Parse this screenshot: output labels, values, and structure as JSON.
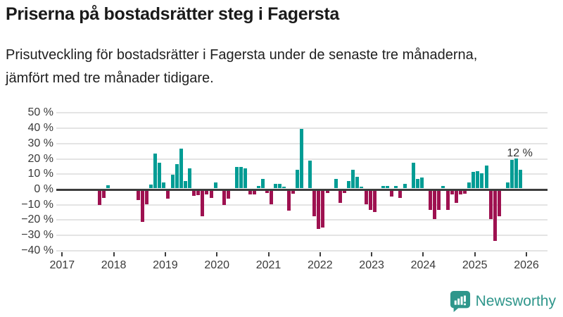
{
  "header": {
    "title": "Priserna på bostadsrätter steg i Fagersta",
    "subtitle": "Prisutveckling för bostadsrätter i Fagersta under de senaste tre månaderna, jämfört med tre månader tidigare."
  },
  "chart_data": {
    "type": "bar",
    "title": "Priserna på bostadsrätter steg i Fagersta",
    "xlabel": "",
    "ylabel": "",
    "unit": "%",
    "ylim": [
      -40,
      50
    ],
    "grid": "horizontal",
    "y_tick_values": [
      50,
      40,
      30,
      20,
      10,
      0,
      -10,
      -20,
      -30,
      -40
    ],
    "y_tick_labels": [
      "50 %",
      "40 %",
      "30 %",
      "20 %",
      "10 %",
      "0 %",
      "−10 %",
      "−20 %",
      "−30 %",
      "−40 %"
    ],
    "x_tick_labels": [
      "2017",
      "2018",
      "2019",
      "2020",
      "2021",
      "2022",
      "2023",
      "2024",
      "2025",
      "2026"
    ],
    "x_unit": "months_after_january_2017",
    "bars": [
      [
        9,
        -9.5
      ],
      [
        10,
        -5
      ],
      [
        11,
        2
      ],
      [
        18,
        -6
      ],
      [
        19,
        -20.5
      ],
      [
        20,
        -9
      ],
      [
        21,
        2.5
      ],
      [
        22,
        23
      ],
      [
        23,
        17
      ],
      [
        24,
        4
      ],
      [
        25,
        -5.5
      ],
      [
        26,
        9
      ],
      [
        27,
        16
      ],
      [
        28,
        26
      ],
      [
        29,
        5
      ],
      [
        30,
        13
      ],
      [
        31,
        -3.5
      ],
      [
        32,
        -3
      ],
      [
        33,
        -17
      ],
      [
        34,
        -2.5
      ],
      [
        35,
        -5
      ],
      [
        36,
        4
      ],
      [
        38,
        -9.5
      ],
      [
        39,
        -5.5
      ],
      [
        41,
        14
      ],
      [
        42,
        14
      ],
      [
        43,
        13
      ],
      [
        44,
        -2.5
      ],
      [
        45,
        -2.5
      ],
      [
        46,
        1.5
      ],
      [
        47,
        6
      ],
      [
        48,
        -1.5
      ],
      [
        49,
        -9
      ],
      [
        50,
        3
      ],
      [
        51,
        3
      ],
      [
        52,
        1
      ],
      [
        53,
        -13
      ],
      [
        54,
        -2
      ],
      [
        55,
        12
      ],
      [
        56,
        39
      ],
      [
        58,
        18
      ],
      [
        59,
        -17
      ],
      [
        60,
        -25
      ],
      [
        61,
        -24
      ],
      [
        62,
        -1.5
      ],
      [
        64,
        6
      ],
      [
        65,
        -8
      ],
      [
        66,
        -1.5
      ],
      [
        67,
        5
      ],
      [
        68,
        12
      ],
      [
        69,
        7.5
      ],
      [
        70,
        1
      ],
      [
        71,
        -9
      ],
      [
        72,
        -12.5
      ],
      [
        73,
        -14
      ],
      [
        75,
        1.5
      ],
      [
        76,
        1.5
      ],
      [
        77,
        -4
      ],
      [
        78,
        1.5
      ],
      [
        79,
        -5
      ],
      [
        80,
        3
      ],
      [
        82,
        17
      ],
      [
        83,
        6
      ],
      [
        84,
        7
      ],
      [
        86,
        -12.5
      ],
      [
        87,
        -18.5
      ],
      [
        88,
        -12.5
      ],
      [
        89,
        1.5
      ],
      [
        90,
        -12.5
      ],
      [
        91,
        -2.5
      ],
      [
        92,
        -8
      ],
      [
        93,
        -2.5
      ],
      [
        94,
        -2
      ],
      [
        95,
        4
      ],
      [
        96,
        11
      ],
      [
        97,
        11.5
      ],
      [
        98,
        10
      ],
      [
        99,
        15
      ],
      [
        100,
        -18.5
      ],
      [
        101,
        -33
      ],
      [
        102,
        -17
      ],
      [
        104,
        4
      ],
      [
        105,
        18.5
      ],
      [
        106,
        19.5
      ],
      [
        107,
        12
      ]
    ],
    "annotation": {
      "text": "12 %",
      "value": 12,
      "anchor_month": 107
    },
    "colors": {
      "positive": "#009c94",
      "negative": "#9e1150",
      "axis": "#3d3d3d",
      "grid": "#e4e4e4"
    }
  },
  "branding": {
    "logo_text": "Newsworthy",
    "logo_icon": "speech-bubble-bar-chart-icon",
    "color": "#2f968b"
  }
}
